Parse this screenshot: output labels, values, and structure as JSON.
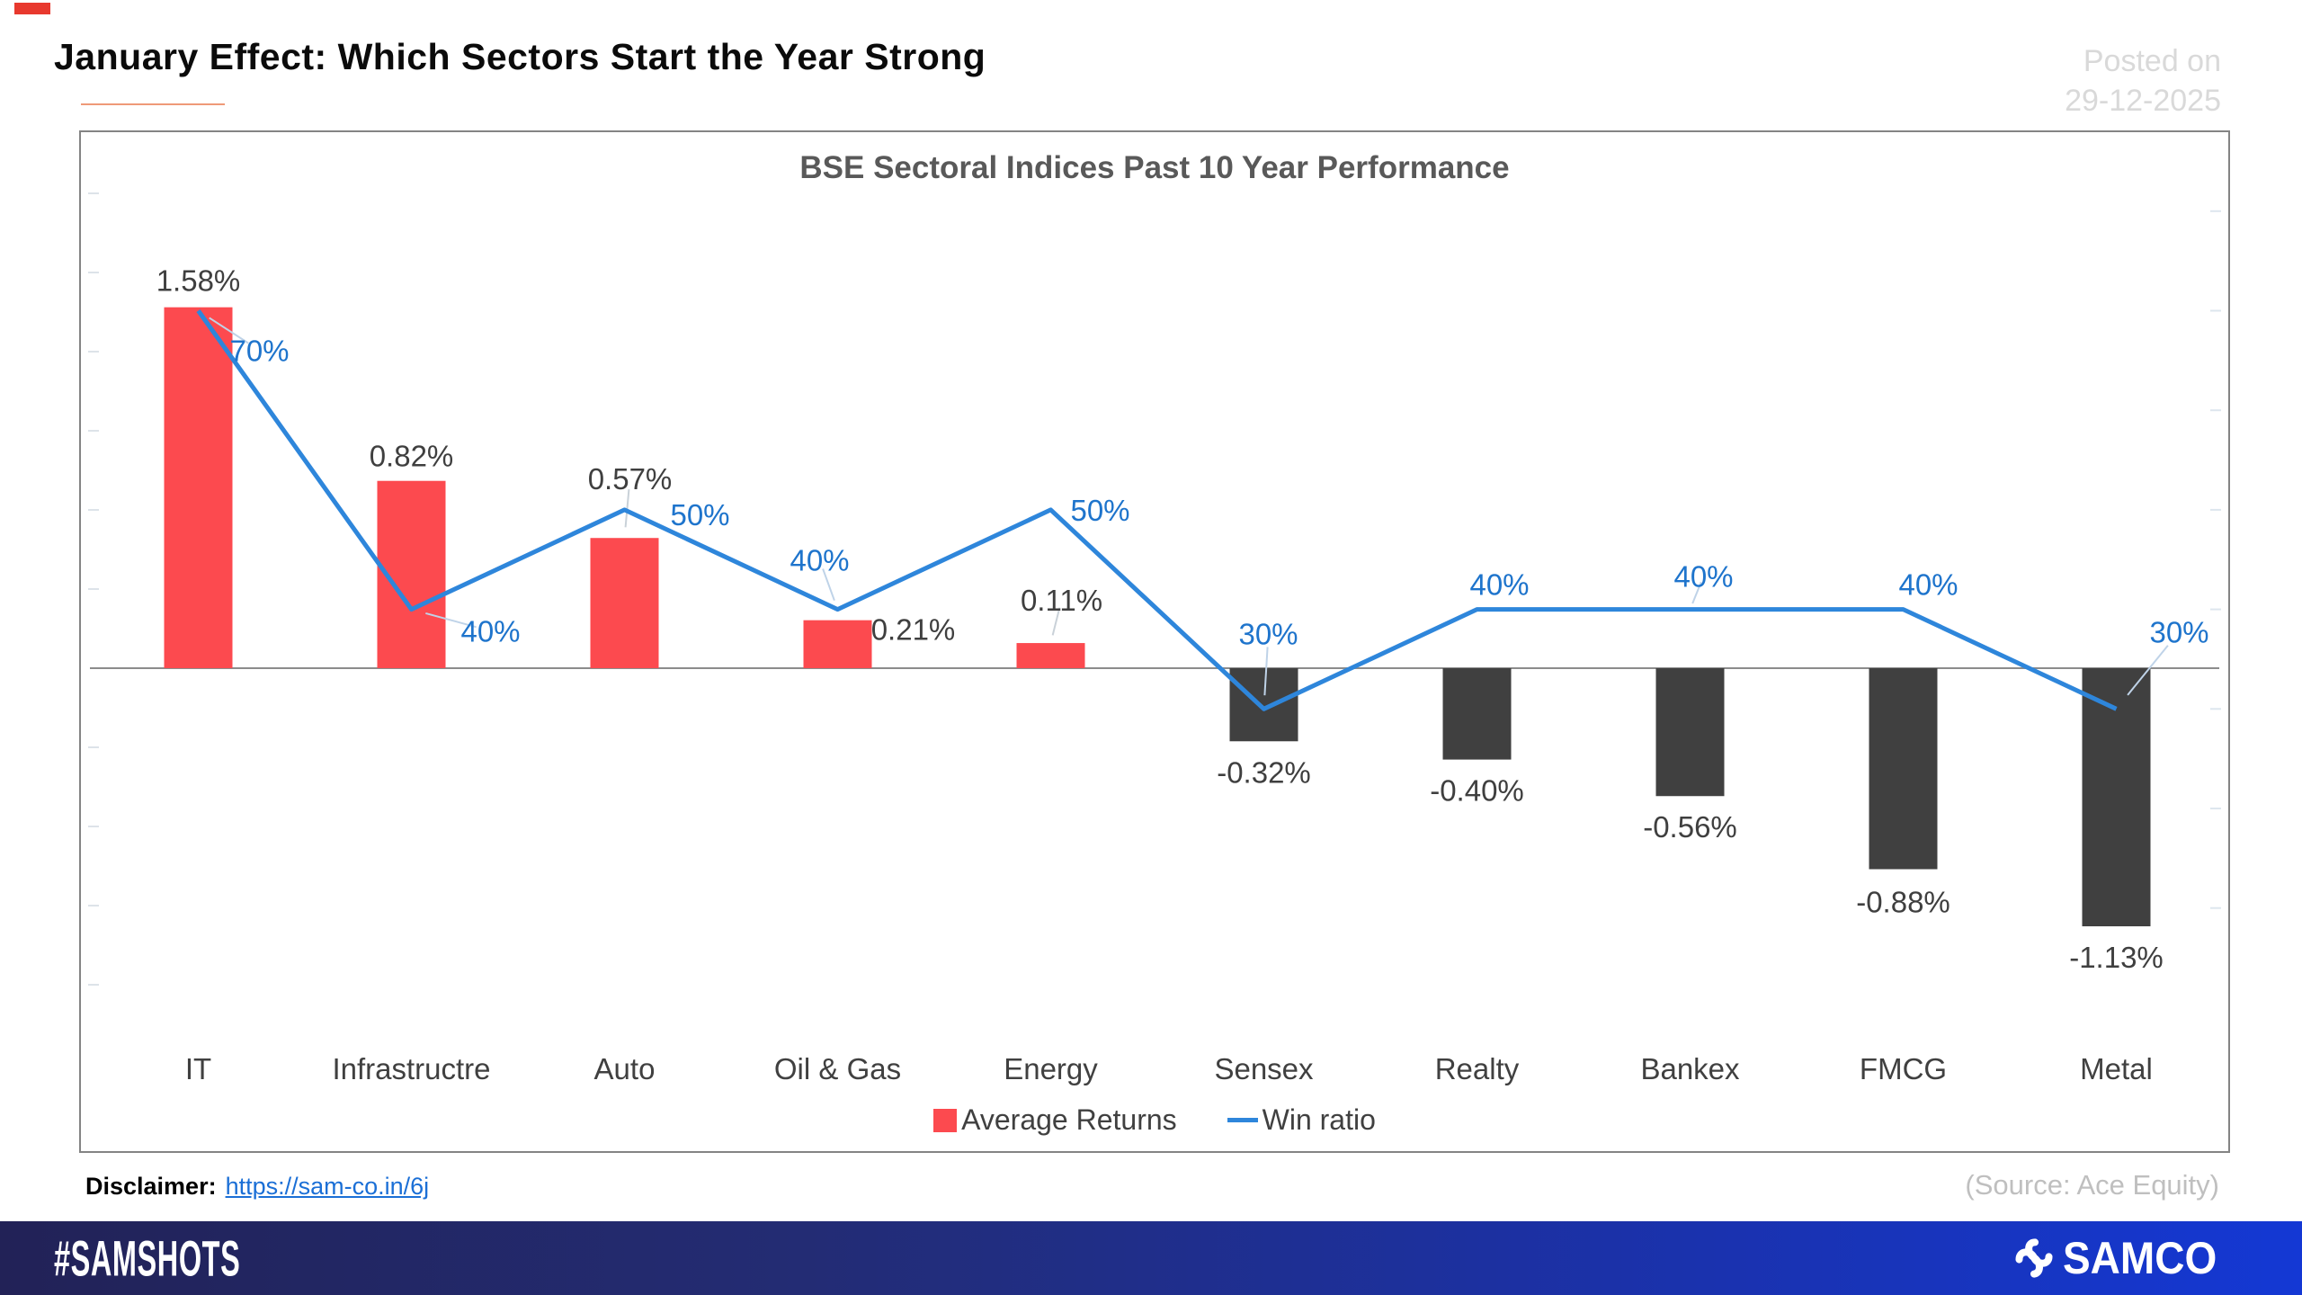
{
  "header": {
    "title": "January Effect: Which Sectors Start the Year Strong",
    "posted_on_line1": "Posted on",
    "posted_on_line2": "29-12-2025"
  },
  "chart_data": {
    "type": "bar",
    "subtype": "combo-bar-line",
    "title": "BSE Sectoral Indices Past 10 Year Performance",
    "categories": [
      "IT",
      "Infrastructre",
      "Auto",
      "Oil & Gas",
      "Energy",
      "Sensex",
      "Realty",
      "Bankex",
      "FMCG",
      "Metal"
    ],
    "series": [
      {
        "name": "Average Returns",
        "type": "bar",
        "unit": "%",
        "values": [
          1.58,
          0.82,
          0.57,
          0.21,
          0.11,
          -0.32,
          -0.4,
          -0.56,
          -0.88,
          -1.13
        ],
        "labels": [
          "1.58%",
          "0.82%",
          "0.57%",
          "0.21%",
          "0.11%",
          "-0.32%",
          "-0.40%",
          "-0.56%",
          "-0.88%",
          "-1.13%"
        ],
        "positive_color": "#fc4a4f",
        "negative_color": "#404040"
      },
      {
        "name": "Win ratio",
        "type": "line",
        "unit": "%",
        "values": [
          70,
          40,
          50,
          40,
          50,
          30,
          40,
          40,
          40,
          30
        ],
        "labels": [
          "70%",
          "40%",
          "50%",
          "40%",
          "50%",
          "30%",
          "40%",
          "40%",
          "40%",
          "30%"
        ],
        "color": "#2e86db",
        "label_color": "#1e74cc"
      }
    ],
    "legend_position": "bottom",
    "axes": {
      "left_axis_labels_visible": false,
      "right_axis_labels_visible": false,
      "zero_line": true,
      "grid": false
    }
  },
  "footer": {
    "disclaimer_label": "Disclaimer:",
    "disclaimer_url": "https://sam-co.in/6j",
    "source": "(Source: Ace Equity)",
    "hashtag": "#SAMSHOTS",
    "brand": "SAMCO"
  }
}
